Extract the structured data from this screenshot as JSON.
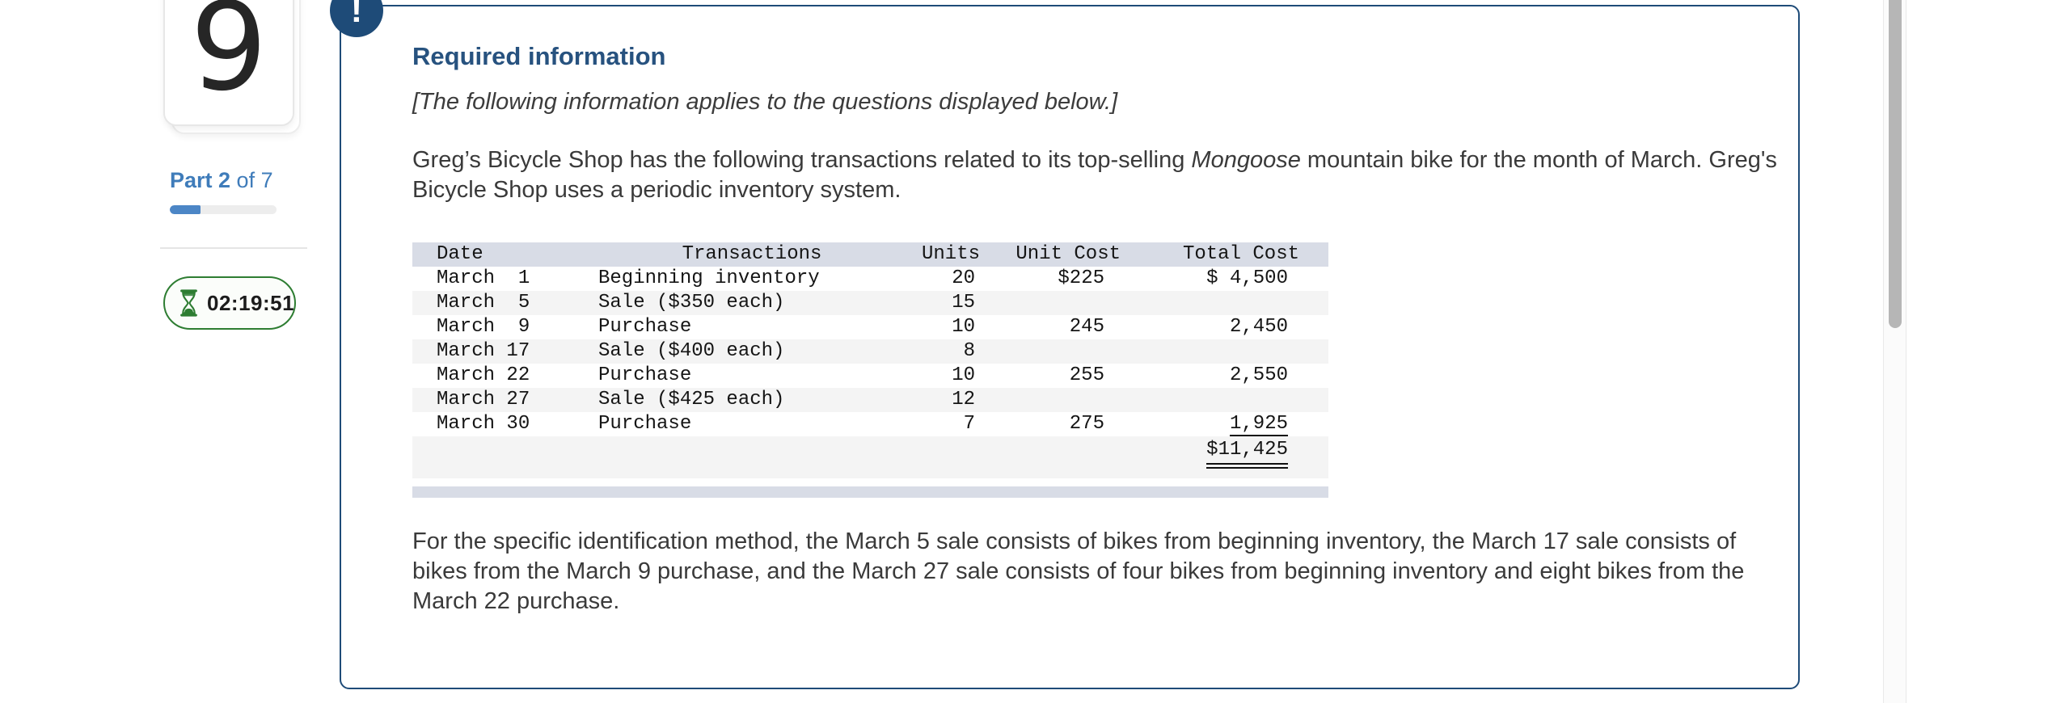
{
  "sidebar": {
    "question_number": "9",
    "part_bold": "Part 2",
    "part_rest": " of 7",
    "progress_percent": 29,
    "timer": "02:19:51"
  },
  "panel": {
    "alert_symbol": "!",
    "heading": "Required information",
    "notice": "[The following information applies to the questions displayed below.]",
    "intro": {
      "before_italic": "Greg’s Bicycle Shop has the following transactions related to its top-selling ",
      "italic": "Mongoose",
      "after_italic": " mountain bike for the month of March. Greg's Bicycle Shop uses a periodic inventory system."
    },
    "table": {
      "headers": [
        "Date",
        "Transactions",
        "Units",
        "Unit Cost",
        "Total Cost"
      ],
      "rows": [
        {
          "date": "March  1",
          "transaction": "Beginning inventory",
          "units": "20",
          "unit_cost": "$225",
          "total_cost": "$ 4,500"
        },
        {
          "date": "March  5",
          "transaction": "Sale ($350 each)",
          "units": "15",
          "unit_cost": "",
          "total_cost": ""
        },
        {
          "date": "March  9",
          "transaction": "Purchase",
          "units": "10",
          "unit_cost": "245",
          "total_cost": "2,450"
        },
        {
          "date": "March 17",
          "transaction": "Sale ($400 each)",
          "units": "8",
          "unit_cost": "",
          "total_cost": ""
        },
        {
          "date": "March 22",
          "transaction": "Purchase",
          "units": "10",
          "unit_cost": "255",
          "total_cost": "2,550"
        },
        {
          "date": "March 27",
          "transaction": "Sale ($425 each)",
          "units": "12",
          "unit_cost": "",
          "total_cost": ""
        },
        {
          "date": "March 30",
          "transaction": "Purchase",
          "units": "7",
          "unit_cost": "275",
          "total_cost": "1,925",
          "underline_total": true
        }
      ],
      "grand_total": "$11,425"
    },
    "closing": "For the specific identification method, the March 5 sale consists of bikes from beginning inventory, the March 17 sale consists of bikes from the March 9 purchase, and the March 27 sale consists of four bikes from beginning inventory and eight bikes from the March 22 purchase."
  },
  "colors": {
    "panel_border_blue": "#1e4b78",
    "heading_blue": "#27527f",
    "part_blue": "#3f7cba",
    "progress_blue": "#4c86c6",
    "timer_green": "#2e7d32",
    "table_header_bg": "#d8dce6",
    "table_stripe_bg": "#f4f4f4"
  }
}
